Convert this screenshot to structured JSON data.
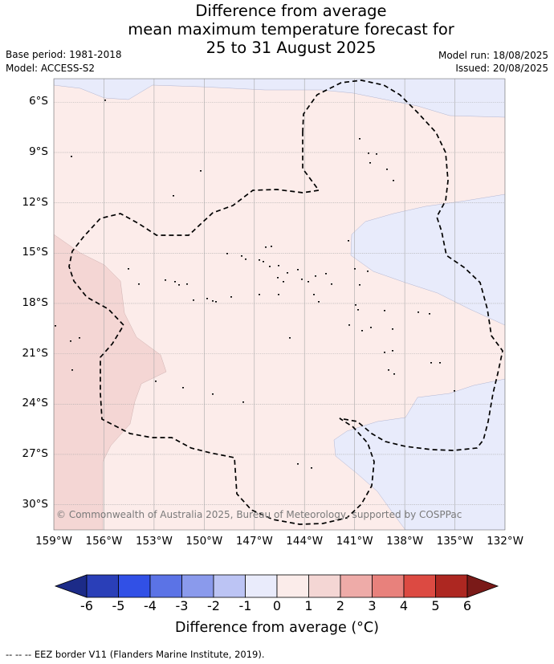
{
  "title": {
    "line1": "Difference from average",
    "line2": "mean maximum temperature forecast for",
    "line3": "25 to 31 August 2025"
  },
  "meta": {
    "base_period": "Base period: 1981-2018",
    "model": "Model: ACCESS-S2",
    "model_run": "Model run: 18/08/2025",
    "issued": "Issued: 20/08/2025"
  },
  "map": {
    "lon_range": [
      -159,
      -132
    ],
    "lat_range": [
      -31.5,
      -4.6
    ],
    "lat_labels": [
      "6°S",
      "9°S",
      "12°S",
      "15°S",
      "18°S",
      "21°S",
      "24°S",
      "27°S",
      "30°S"
    ],
    "lon_labels": [
      "159°W",
      "156°W",
      "153°W",
      "150°W",
      "147°W",
      "144°W",
      "141°W",
      "138°W",
      "135°W",
      "132°W"
    ],
    "copyright": "© Commonwealth of Australia 2025, Bureau of Meteorology, supported by COSPPac",
    "fill_colors": {
      "below_0": "#e8ebfb",
      "0_to_1": "#fcecea",
      "1_to_2": "#f4d6d4"
    }
  },
  "colorbar": {
    "ticks": [
      "-6",
      "-5",
      "-4",
      "-3",
      "-2",
      "-1",
      "0",
      "1",
      "2",
      "3",
      "4",
      "5",
      "6"
    ],
    "colors": [
      "#1c2b88",
      "#2a3fb8",
      "#3150e6",
      "#5b73e6",
      "#8a9aec",
      "#bcc4f4",
      "#e9ebfb",
      "#fbecea",
      "#f4d6d4",
      "#eeaba8",
      "#e8817c",
      "#dc4a42",
      "#ad2721",
      "#7a1a18"
    ],
    "label": "Difference from average (°C)"
  },
  "footer": "--  --  -- EEZ border V11 (Flanders Marine Institute, 2019)."
}
